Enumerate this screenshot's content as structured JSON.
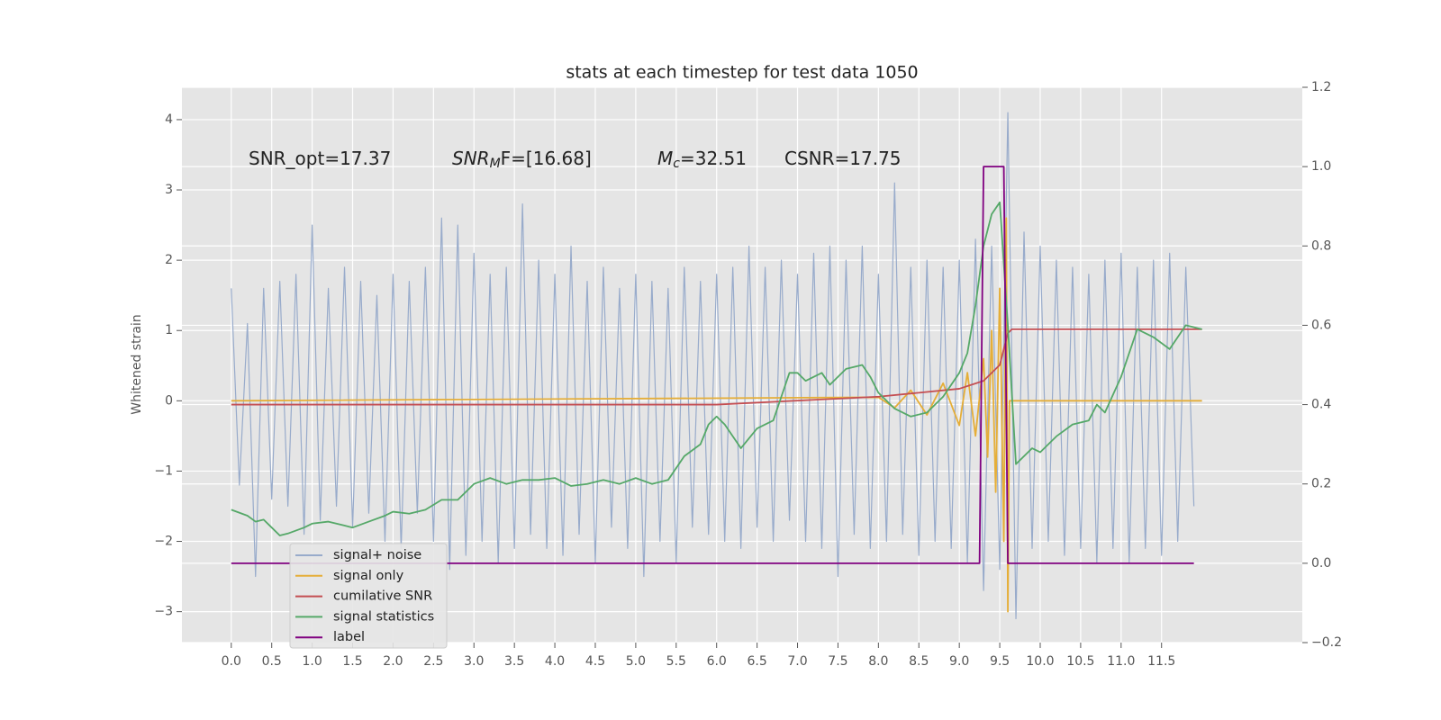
{
  "chart_data": {
    "type": "line",
    "title": "stats at each timestep for test data 1050",
    "y_label": "Whitened strain",
    "xlim": [
      -0.61,
      13.24
    ],
    "ylim": [
      -3.44,
      4.46
    ],
    "y2lim": [
      -0.2,
      1.2
    ],
    "xticks": [
      {
        "value": 0,
        "label": "0.0"
      },
      0.5,
      {
        "value": 1,
        "label": "1.0"
      },
      1.5,
      {
        "value": 2,
        "label": "2.0"
      },
      2.5,
      {
        "value": 3,
        "label": "3.0"
      },
      3.5,
      {
        "value": 4,
        "label": "4.0"
      },
      4.5,
      {
        "value": 5,
        "label": "5.0"
      },
      5.5,
      {
        "value": 6,
        "label": "6.0"
      },
      6.5,
      {
        "value": 7,
        "label": "7.0"
      },
      7.5,
      {
        "value": 8,
        "label": "8.0"
      },
      8.5,
      {
        "value": 9,
        "label": "9.0"
      },
      9.5,
      {
        "value": 10,
        "label": "10.0"
      },
      10.5,
      {
        "value": 11,
        "label": "11.0"
      },
      11.5
    ],
    "yticks": [
      {
        "value": -3,
        "label": "−3"
      },
      {
        "value": -2,
        "label": "−2"
      },
      {
        "value": -1,
        "label": "−1"
      },
      0,
      1,
      2,
      3,
      4
    ],
    "y2ticks": [
      {
        "value": -0.2,
        "label": "−0.2"
      },
      {
        "value": 0,
        "label": "0.0"
      },
      0.2,
      0.4,
      0.6,
      0.8,
      {
        "value": 1,
        "label": "1.0"
      },
      1.2
    ],
    "grid": true,
    "legend_loc": "lower left",
    "annotations": [
      {
        "text": "SNR_opt=17.37"
      },
      {
        "text": "SNR",
        "sub": "M",
        "tail": "F=[16.68]"
      },
      {
        "text": "M",
        "sub": "c",
        "tail": "=32.51"
      },
      {
        "text": "CSNR=17.75"
      }
    ],
    "series": [
      {
        "name": "signal+ noise",
        "color": "#98abcb",
        "x": [
          0.0,
          0.1,
          0.2,
          0.3,
          0.4,
          0.5,
          0.6,
          0.7,
          0.8,
          0.9,
          1.0,
          1.1,
          1.2,
          1.3,
          1.4,
          1.5,
          1.6,
          1.7,
          1.8,
          1.9,
          2.0,
          2.1,
          2.2,
          2.3,
          2.4,
          2.5,
          2.6,
          2.7,
          2.8,
          2.9,
          3.0,
          3.1,
          3.2,
          3.3,
          3.4,
          3.5,
          3.6,
          3.7,
          3.8,
          3.9,
          4.0,
          4.1,
          4.2,
          4.3,
          4.4,
          4.5,
          4.6,
          4.7,
          4.8,
          4.9,
          5.0,
          5.1,
          5.2,
          5.3,
          5.4,
          5.5,
          5.6,
          5.7,
          5.8,
          5.9,
          6.0,
          6.1,
          6.2,
          6.3,
          6.4,
          6.5,
          6.6,
          6.7,
          6.8,
          6.9,
          7.0,
          7.1,
          7.2,
          7.3,
          7.4,
          7.5,
          7.6,
          7.7,
          7.8,
          7.9,
          8.0,
          8.1,
          8.2,
          8.3,
          8.4,
          8.5,
          8.6,
          8.7,
          8.8,
          8.9,
          9.0,
          9.1,
          9.2,
          9.3,
          9.4,
          9.5,
          9.6,
          9.7,
          9.8,
          9.9,
          10.0,
          10.1,
          10.2,
          10.3,
          10.4,
          10.5,
          10.6,
          10.7,
          10.8,
          10.9,
          11.0,
          11.1,
          11.2,
          11.3,
          11.4,
          11.5,
          11.6,
          11.7,
          11.8,
          11.9
        ],
        "values": [
          1.6,
          -1.2,
          1.1,
          -2.5,
          1.6,
          -1.4,
          1.7,
          -1.5,
          1.8,
          -1.9,
          2.5,
          -1.7,
          1.6,
          -1.5,
          1.9,
          -1.8,
          1.7,
          -1.6,
          1.5,
          -2.0,
          1.8,
          -2.1,
          1.7,
          -1.6,
          1.9,
          -2.0,
          2.6,
          -2.4,
          2.5,
          -2.2,
          2.1,
          -2.0,
          1.8,
          -2.3,
          1.9,
          -2.1,
          2.8,
          -1.9,
          2.0,
          -2.1,
          1.8,
          -2.2,
          2.2,
          -1.9,
          1.7,
          -2.3,
          1.9,
          -1.8,
          1.6,
          -2.1,
          1.8,
          -2.5,
          1.7,
          -2.0,
          1.6,
          -2.3,
          1.9,
          -1.8,
          1.7,
          -1.9,
          1.8,
          -2.0,
          1.9,
          -2.1,
          2.2,
          -1.8,
          1.9,
          -2.0,
          2.0,
          -1.7,
          1.8,
          -2.0,
          2.1,
          -2.1,
          2.2,
          -2.5,
          2.0,
          -1.9,
          2.2,
          -2.1,
          1.8,
          -2.0,
          3.1,
          -1.9,
          1.9,
          -2.2,
          2.0,
          -2.0,
          1.9,
          -2.1,
          2.0,
          -2.3,
          2.3,
          -2.7,
          2.2,
          -2.4,
          4.1,
          -3.1,
          2.4,
          -2.1,
          2.2,
          -2.0,
          2.0,
          -2.2,
          1.9,
          -2.1,
          1.8,
          -2.3,
          2.0,
          -2.1,
          2.1,
          -2.3,
          1.9,
          -2.1,
          2.0,
          -2.2,
          2.1,
          -2.0,
          1.9,
          -1.5
        ]
      },
      {
        "name": "signal only",
        "color": "#e5ae38",
        "x": [
          0,
          8.0,
          8.2,
          8.4,
          8.6,
          8.8,
          9.0,
          9.1,
          9.2,
          9.3,
          9.35,
          9.4,
          9.45,
          9.5,
          9.55,
          9.58,
          9.6,
          9.62,
          9.65,
          12.0
        ],
        "values": [
          0,
          0.05,
          -0.1,
          0.15,
          -0.2,
          0.25,
          -0.35,
          0.4,
          -0.5,
          0.6,
          -0.8,
          1.0,
          -1.3,
          1.6,
          -2.0,
          2.6,
          -3.0,
          0,
          0,
          0
        ]
      },
      {
        "name": "cumilative SNR",
        "color": "#c44e52",
        "axis": "y2",
        "x": [
          0,
          6.0,
          7.0,
          8.0,
          8.5,
          9.0,
          9.3,
          9.5,
          9.6,
          9.65,
          12.0
        ],
        "values": [
          0.4,
          0.4,
          0.41,
          0.42,
          0.43,
          0.44,
          0.46,
          0.5,
          0.58,
          0.59,
          0.59
        ]
      },
      {
        "name": "signal statistics",
        "color": "#55a868",
        "axis": "y2",
        "x": [
          0,
          0.2,
          0.3,
          0.4,
          0.5,
          0.6,
          0.7,
          0.9,
          1.0,
          1.2,
          1.5,
          1.7,
          1.9,
          2.0,
          2.2,
          2.4,
          2.6,
          2.8,
          3.0,
          3.2,
          3.4,
          3.6,
          3.8,
          4.0,
          4.2,
          4.4,
          4.6,
          4.8,
          5.0,
          5.2,
          5.4,
          5.6,
          5.8,
          5.9,
          6.0,
          6.1,
          6.3,
          6.5,
          6.7,
          6.8,
          6.9,
          7.0,
          7.1,
          7.3,
          7.4,
          7.6,
          7.8,
          7.9,
          8.0,
          8.2,
          8.4,
          8.6,
          8.8,
          9.0,
          9.1,
          9.2,
          9.3,
          9.4,
          9.5,
          9.6,
          9.7,
          9.9,
          10.0,
          10.2,
          10.4,
          10.6,
          10.7,
          10.8,
          11.0,
          11.2,
          11.4,
          11.6,
          11.8,
          12.0
        ],
        "values": [
          0.135,
          0.12,
          0.105,
          0.11,
          0.09,
          0.07,
          0.075,
          0.09,
          0.1,
          0.105,
          0.09,
          0.105,
          0.12,
          0.13,
          0.125,
          0.135,
          0.16,
          0.16,
          0.2,
          0.215,
          0.2,
          0.21,
          0.21,
          0.215,
          0.195,
          0.2,
          0.21,
          0.2,
          0.215,
          0.2,
          0.21,
          0.27,
          0.3,
          0.35,
          0.37,
          0.35,
          0.29,
          0.34,
          0.36,
          0.42,
          0.48,
          0.48,
          0.46,
          0.48,
          0.45,
          0.49,
          0.5,
          0.47,
          0.43,
          0.39,
          0.37,
          0.38,
          0.42,
          0.48,
          0.53,
          0.65,
          0.8,
          0.88,
          0.91,
          0.6,
          0.25,
          0.29,
          0.28,
          0.32,
          0.35,
          0.36,
          0.4,
          0.38,
          0.47,
          0.59,
          0.57,
          0.54,
          0.6,
          0.59
        ]
      },
      {
        "name": "label",
        "color": "#800080",
        "axis": "y2",
        "x": [
          0,
          9.25,
          9.3,
          9.55,
          9.6,
          11.9
        ],
        "values": [
          0,
          0,
          1,
          1,
          0,
          0
        ]
      }
    ]
  }
}
